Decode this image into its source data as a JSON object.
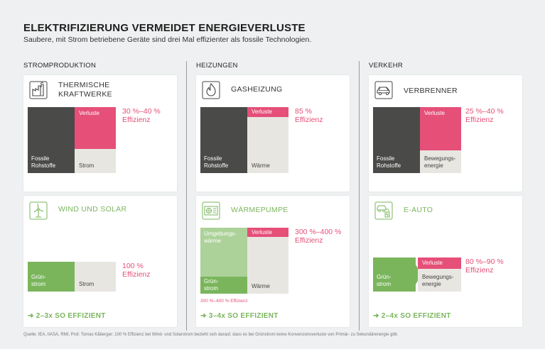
{
  "header": {
    "title": "ELEKTRIFIZIERUNG VERMEIDET ENERGIEVERLUSTE",
    "subtitle": "Saubere, mit Strom betriebene Geräte sind drei Mal effizienter als fossile Technologien."
  },
  "sections": {
    "strom": "STROMPRODUKTION",
    "heizung": "HEIZUNGEN",
    "verkehr": "VERKEHR"
  },
  "cards": {
    "thermisch": {
      "title_line1": "THERMISCHE",
      "title_line2": "KRAFTWERKE",
      "input_line1": "Fossile",
      "input_line2": "Rohstoffe",
      "loss": "Verluste",
      "output": "Strom",
      "eff_line1": "30 %–40 %",
      "eff_line2": "Effizienz",
      "icon": "power-plant-icon",
      "efficiency_fraction": 0.35
    },
    "wind": {
      "title": "WIND UND SOLAR",
      "input_line1": "Grün-",
      "input_line2": "strom",
      "output": "Strom",
      "eff_line1": "100 %",
      "eff_line2": "Effizienz",
      "footer": "2–3x SO EFFIZIENT",
      "icon": "wind-turbine-icon",
      "efficiency_fraction": 1.0
    },
    "gas": {
      "title": "GASHEIZUNG",
      "input_line1": "Fossile",
      "input_line2": "Rohstoffe",
      "loss": "Verluste",
      "output": "Wärme",
      "eff_line1": "85 %",
      "eff_line2": "Effizienz",
      "icon": "flame-icon",
      "efficiency_fraction": 0.85
    },
    "waermepumpe": {
      "title": "WÄRMEPUMPE",
      "ambient_line1": "Umgebungs-",
      "ambient_line2": "wärme",
      "input_line1": "Grün-",
      "input_line2": "strom",
      "loss": "Verluste",
      "output": "Wärme",
      "eff_line1": "300 %–400 %",
      "eff_line2": "Effizienz",
      "note": "300 %–400 % Effizienz",
      "footer": "3–4x SO EFFIZIENT",
      "icon": "heat-pump-icon"
    },
    "verbrenner": {
      "title": "VERBRENNER",
      "input_line1": "Fossile",
      "input_line2": "Rohstoffe",
      "loss": "Verluste",
      "output_line1": "Bewegungs-",
      "output_line2": "energie",
      "eff_line1": "25 %–40 %",
      "eff_line2": "Effizienz",
      "icon": "car-icon",
      "efficiency_fraction": 0.32
    },
    "eauto": {
      "title": "E-AUTO",
      "input_line1": "Grün-",
      "input_line2": "strom",
      "loss": "Verluste",
      "output_line1": "Bewegungs-",
      "output_line2": "energie",
      "eff_line1": "80 %–90 %",
      "eff_line2": "Effizienz",
      "footer": "2–4x SO EFFIZIENT",
      "icon": "ev-charging-icon",
      "efficiency_fraction": 0.85
    }
  },
  "source": "Quelle: IEA, IIASA, RMI, Prof. Tomas Kåberger; 100 % Effizienz bei Wind- und Solarstrom bezieht sich darauf, dass es bei Grünstrom keine Konversionsverluste von Primär- zu Sekundärenergie gibt.",
  "colors": {
    "fossil": "#4a4a48",
    "loss": "#e54f78",
    "green": "#7ab55c",
    "light_green": "#acd299",
    "output": "#e8e6e1"
  }
}
